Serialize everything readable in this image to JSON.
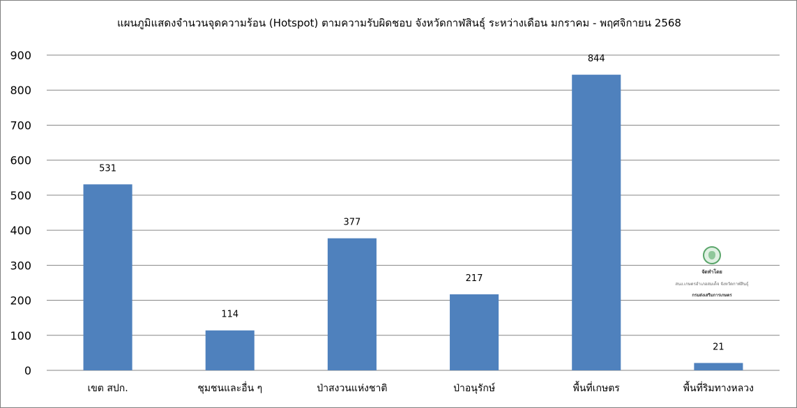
{
  "chart_data": {
    "type": "bar",
    "title": "แผนภูมิแสดงจำนวนจุดความร้อน (Hotspot) ตามความรับผิดชอบ  จังหวัดกาฬสินธุ์ ระหว่างเดือน มกราคม - พฤศจิกายน 2568",
    "categories": [
      "เขต สปก.",
      "ชุมชนและอื่น ๆ",
      "ป่าสงวนแห่งชาติ",
      "ป่าอนุรักษ์",
      "พื้นที่เกษตร",
      "พื้นที่ริมทางหลวง"
    ],
    "values": [
      531,
      114,
      377,
      217,
      844,
      21
    ],
    "ylim": [
      0,
      900
    ],
    "yticks": [
      0,
      100,
      200,
      300,
      400,
      500,
      600,
      700,
      800,
      900
    ],
    "grid": true,
    "legend": "none",
    "bar_color": "#4f81bd",
    "grid_color": "#868686"
  },
  "watermark": {
    "icon": "seal-icon",
    "line1": "จัดทำโดย",
    "line2": "สนง.เกษตรอำเภอสมเด็จ  จังหวัดกาฬสินธุ์",
    "line3": "กรมส่งเสริมการเกษตร"
  }
}
